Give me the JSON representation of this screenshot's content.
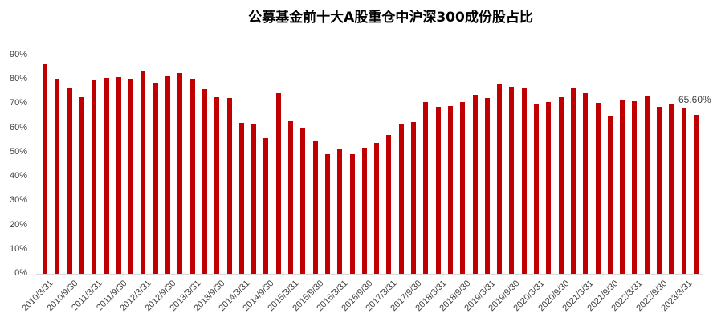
{
  "chart_data": {
    "type": "bar",
    "title": "公募基金前十大A股重仓中沪深300成份股占比",
    "xlabel": "",
    "ylabel": "",
    "ylim": [
      0,
      90
    ],
    "yticks": [
      "0%",
      "10%",
      "20%",
      "30%",
      "40%",
      "50%",
      "60%",
      "70%",
      "80%",
      "90%"
    ],
    "grid": false,
    "legend": null,
    "bar_color": "#c00000",
    "categories": [
      "2010/3/31",
      "2010/6/30",
      "2010/9/30",
      "2010/12/31",
      "2011/3/31",
      "2011/6/30",
      "2011/9/30",
      "2011/12/31",
      "2012/3/31",
      "2012/6/30",
      "2012/9/30",
      "2012/12/31",
      "2013/3/31",
      "2013/6/30",
      "2013/9/30",
      "2013/12/31",
      "2014/3/31",
      "2014/6/30",
      "2014/9/30",
      "2014/12/31",
      "2015/3/31",
      "2015/6/30",
      "2015/9/30",
      "2015/12/31",
      "2016/3/31",
      "2016/6/30",
      "2016/9/30",
      "2016/12/31",
      "2017/3/31",
      "2017/6/30",
      "2017/9/30",
      "2017/12/31",
      "2018/3/31",
      "2018/6/30",
      "2018/9/30",
      "2018/12/31",
      "2019/3/31",
      "2019/6/30",
      "2019/9/30",
      "2019/12/31",
      "2020/3/31",
      "2020/6/30",
      "2020/9/30",
      "2020/12/31",
      "2021/3/31",
      "2021/6/30",
      "2021/9/30",
      "2021/12/31",
      "2022/3/31",
      "2022/6/30",
      "2022/9/30",
      "2022/12/31",
      "2023/3/31",
      "2023/6/30"
    ],
    "visible_xtick_labels": [
      "2010/3/31",
      "2010/9/30",
      "2011/3/31",
      "2011/9/30",
      "2012/3/31",
      "2012/9/30",
      "2013/3/31",
      "2013/9/30",
      "2014/3/31",
      "2014/9/30",
      "2015/3/31",
      "2015/9/30",
      "2016/3/31",
      "2016/9/30",
      "2017/3/31",
      "2017/9/30",
      "2018/3/31",
      "2018/9/30",
      "2019/3/31",
      "2019/9/30",
      "2020/3/31",
      "2020/9/30",
      "2021/3/31",
      "2021/9/30",
      "2022/3/31",
      "2022/9/30",
      "2023/3/31"
    ],
    "values": [
      86.4,
      80.1,
      76.5,
      72.8,
      79.8,
      80.8,
      81.1,
      80.1,
      83.8,
      78.8,
      81.5,
      82.8,
      80.5,
      76.2,
      72.8,
      72.5,
      62.2,
      61.9,
      56.0,
      74.5,
      62.9,
      59.9,
      54.6,
      49.3,
      51.7,
      49.3,
      52.0,
      54.0,
      57.3,
      61.9,
      62.6,
      70.9,
      68.9,
      69.2,
      70.9,
      73.8,
      72.5,
      78.1,
      77.2,
      76.5,
      70.2,
      70.9,
      72.8,
      76.8,
      74.5,
      70.5,
      64.9,
      71.9,
      71.2,
      73.5,
      68.9,
      70.2,
      68.2,
      65.6
    ],
    "annotations": [
      {
        "category": "2023/6/30",
        "text": "65.60%"
      }
    ]
  }
}
